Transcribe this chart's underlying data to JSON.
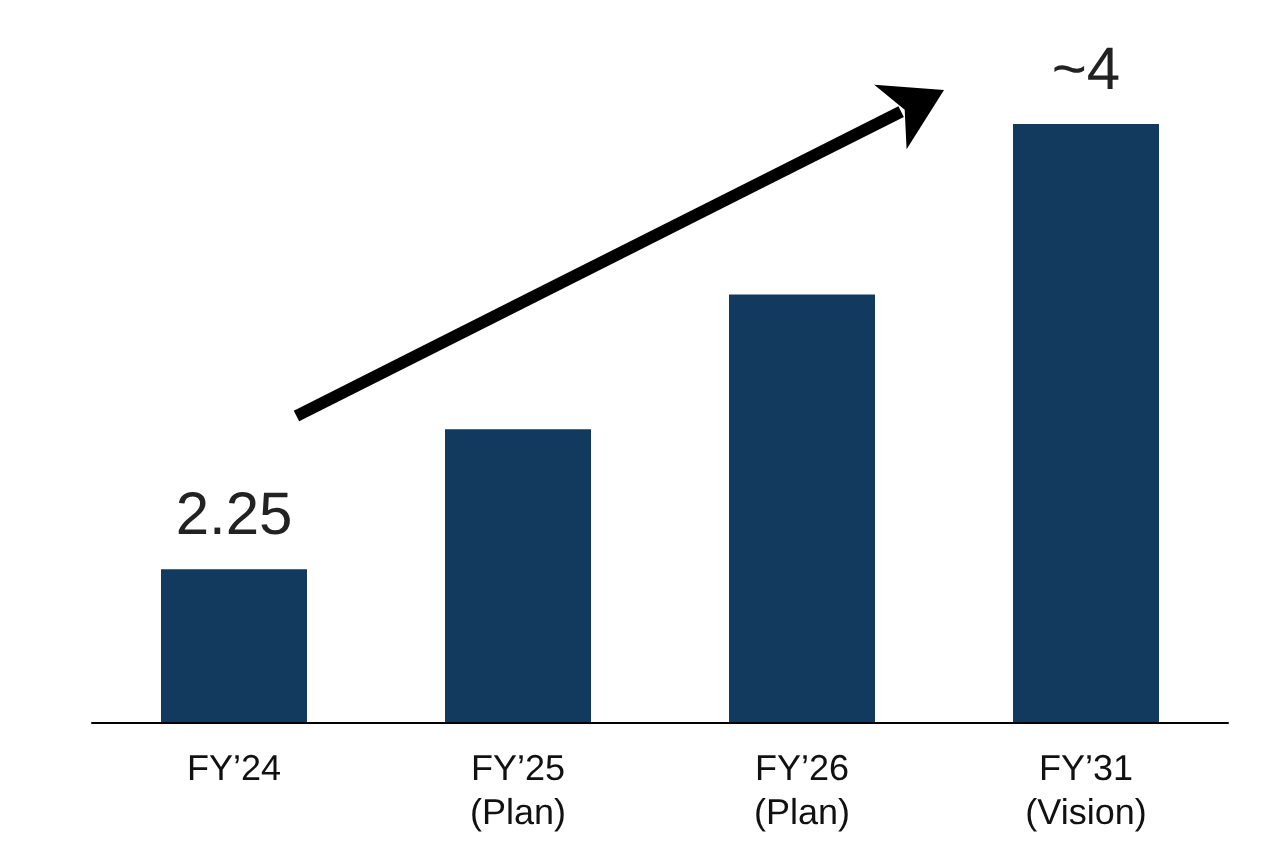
{
  "chart_data": {
    "type": "bar",
    "categories": [
      "FY’24",
      "FY’25\n(Plan)",
      "FY’26\n(Plan)",
      "FY’31\n(Vision)"
    ],
    "values": [
      2.25,
      2.8,
      3.33,
      4
    ],
    "value_labels": [
      "2.25",
      null,
      null,
      "~4"
    ],
    "ylim": [
      1.65,
      4
    ],
    "tick_labels": "x",
    "color": "#123a5e",
    "grid": false
  }
}
